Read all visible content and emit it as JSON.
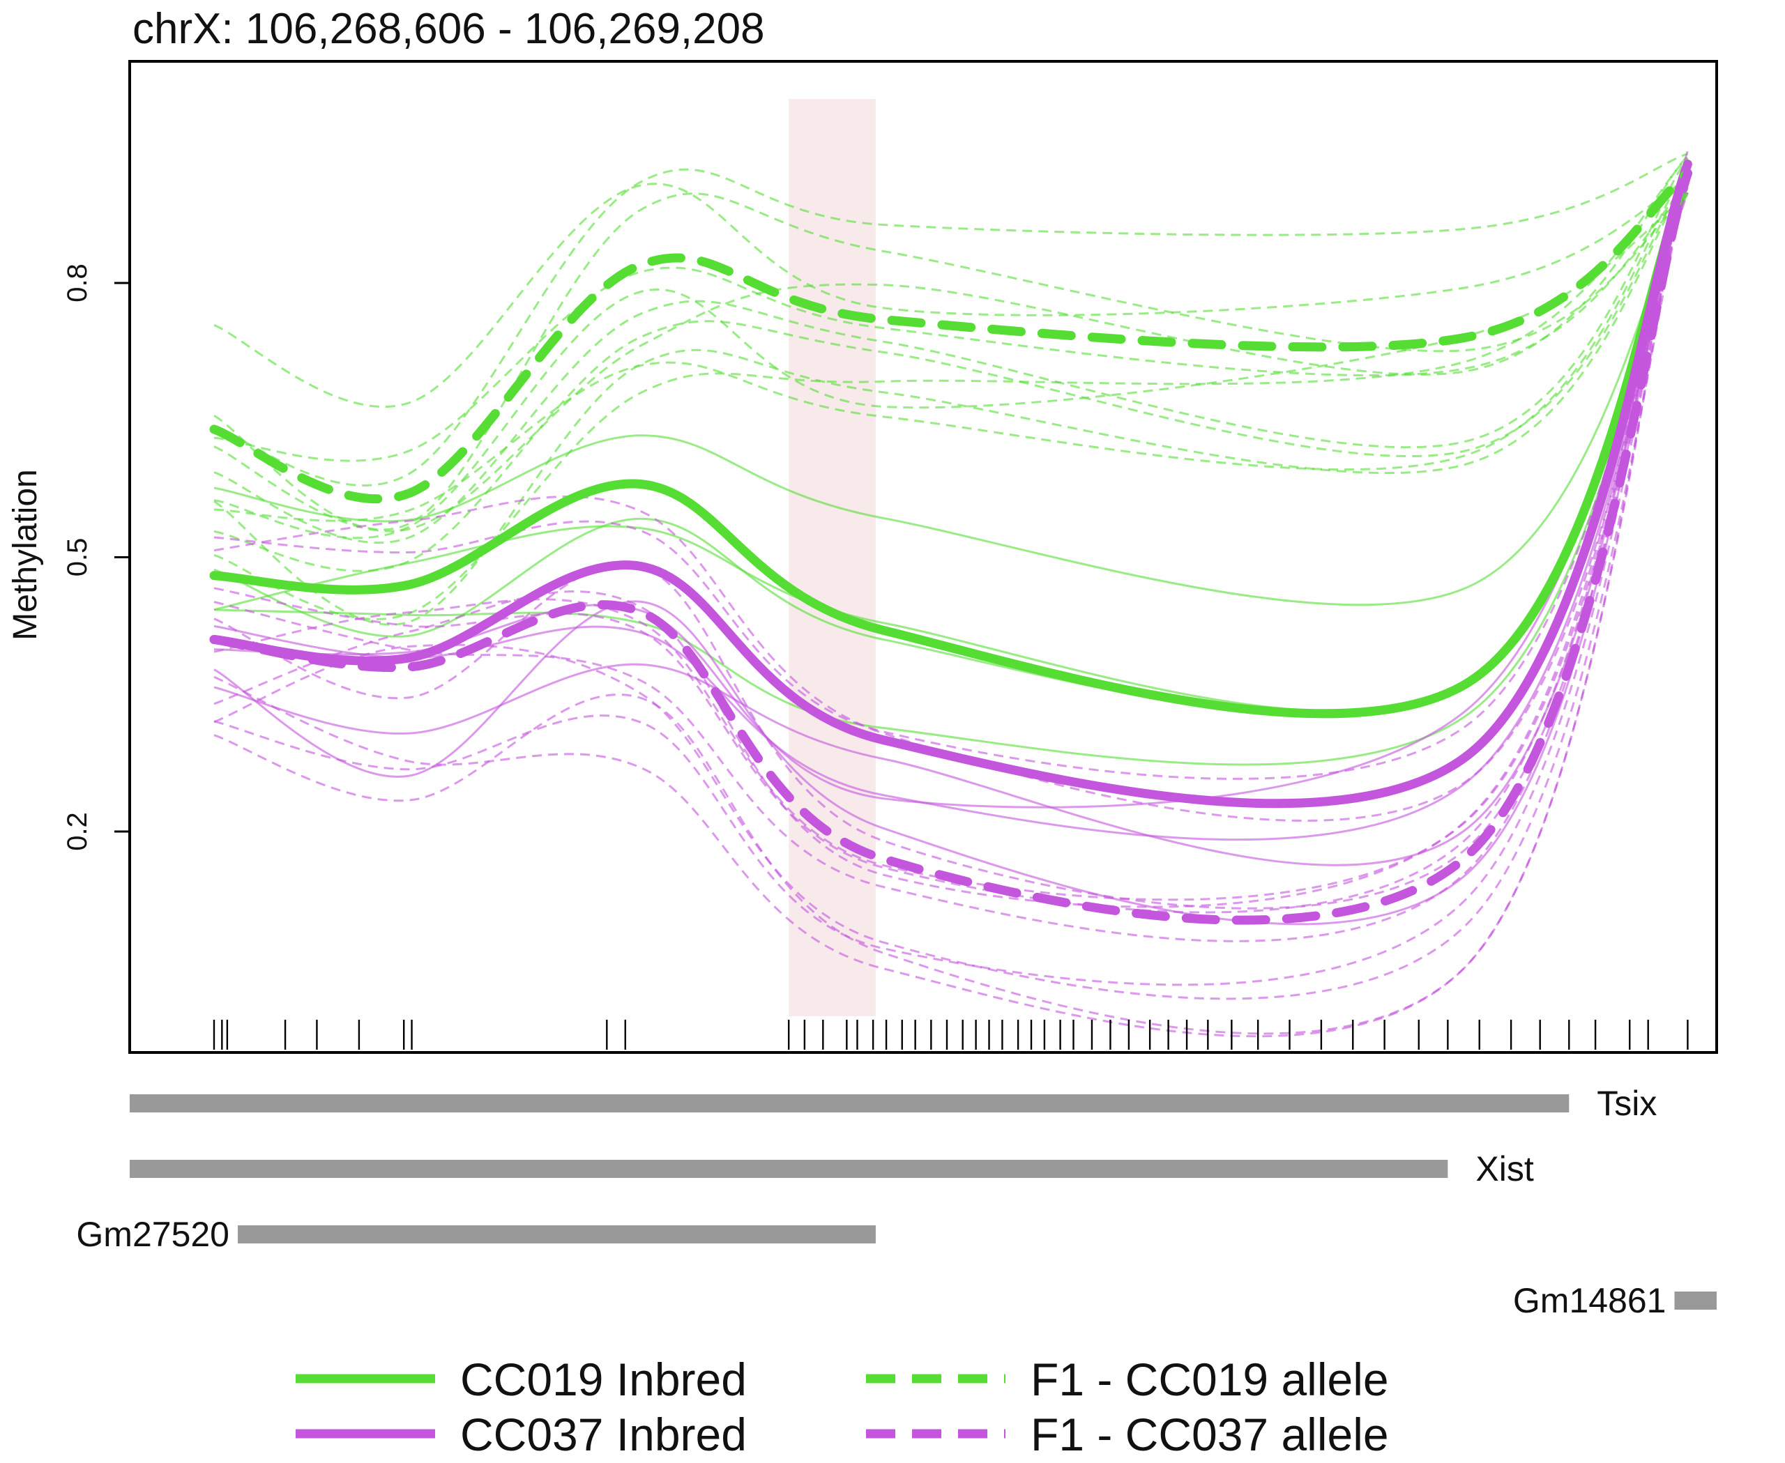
{
  "chart_data": {
    "type": "line",
    "title": "chrX: 106,268,606 - 106,269,208",
    "ylabel": "Methylation",
    "xlabel": "",
    "ylim": [
      0.0,
      1.0
    ],
    "yticks": [
      0.2,
      0.5,
      0.8
    ],
    "ytick_labels": [
      "0.2",
      "0.5",
      "0.8"
    ],
    "x": [
      106268638,
      106268712,
      106268800,
      106268892,
      106269112,
      106269197
    ],
    "series": [
      {
        "name": "CC019 Inbred",
        "style": "solid-bold",
        "color": "#55dd33",
        "values": [
          0.48,
          0.47,
          0.58,
          0.42,
          0.36,
          0.92
        ]
      },
      {
        "name": "CC037 Inbred",
        "style": "solid-bold",
        "color": "#c455dd",
        "values": [
          0.41,
          0.39,
          0.49,
          0.3,
          0.28,
          0.93
        ]
      },
      {
        "name": "F1 - CC019 allele",
        "style": "dashed-bold",
        "color": "#55dd33",
        "values": [
          0.64,
          0.57,
          0.82,
          0.76,
          0.74,
          0.92
        ]
      },
      {
        "name": "F1 - CC037 allele",
        "style": "dashed-bold",
        "color": "#c455dd",
        "values": [
          0.41,
          0.38,
          0.44,
          0.17,
          0.17,
          0.92
        ]
      }
    ],
    "cpg_positions": [
      106268638,
      106268641,
      106268643,
      106268665,
      106268677,
      106268693,
      106268710,
      106268713,
      106268787,
      106268794,
      106268856,
      106268862,
      106268869,
      106268878,
      106268882,
      106268888,
      106268893,
      106268899,
      106268904,
      106268910,
      106268916,
      106268922,
      106268927,
      106268932,
      106268937,
      106268943,
      106268948,
      106268953,
      106268959,
      106268964,
      106268971,
      106268978,
      106268985,
      106268993,
      106269000,
      106269007,
      106269015,
      106269024,
      106269034,
      106269046,
      106269058,
      106269070,
      106269082,
      106269095,
      106269106,
      106269118,
      106269130,
      106269141,
      106269152,
      106269162,
      106269175,
      106269182,
      106269197
    ],
    "highlight_region": [
      106268856,
      106268889
    ],
    "genes": [
      {
        "name": "Tsix",
        "start": 106268606,
        "end": 106269152
      },
      {
        "name": "Xist",
        "start": 106268606,
        "end": 106269106
      },
      {
        "name": "Gm27520",
        "start": 106268647,
        "end": 106268889
      },
      {
        "name": "Gm14861",
        "start": 106269192,
        "end": 106269208
      }
    ],
    "legend": [
      {
        "label": "CC019 Inbred",
        "color": "#55dd33",
        "dash": false
      },
      {
        "label": "CC037 Inbred",
        "color": "#c455dd",
        "dash": false
      },
      {
        "label": "F1 - CC019 allele",
        "color": "#55dd33",
        "dash": true
      },
      {
        "label": "F1 - CC037 allele",
        "color": "#c455dd",
        "dash": true
      }
    ],
    "legend_position": "bottom",
    "grid": false
  }
}
